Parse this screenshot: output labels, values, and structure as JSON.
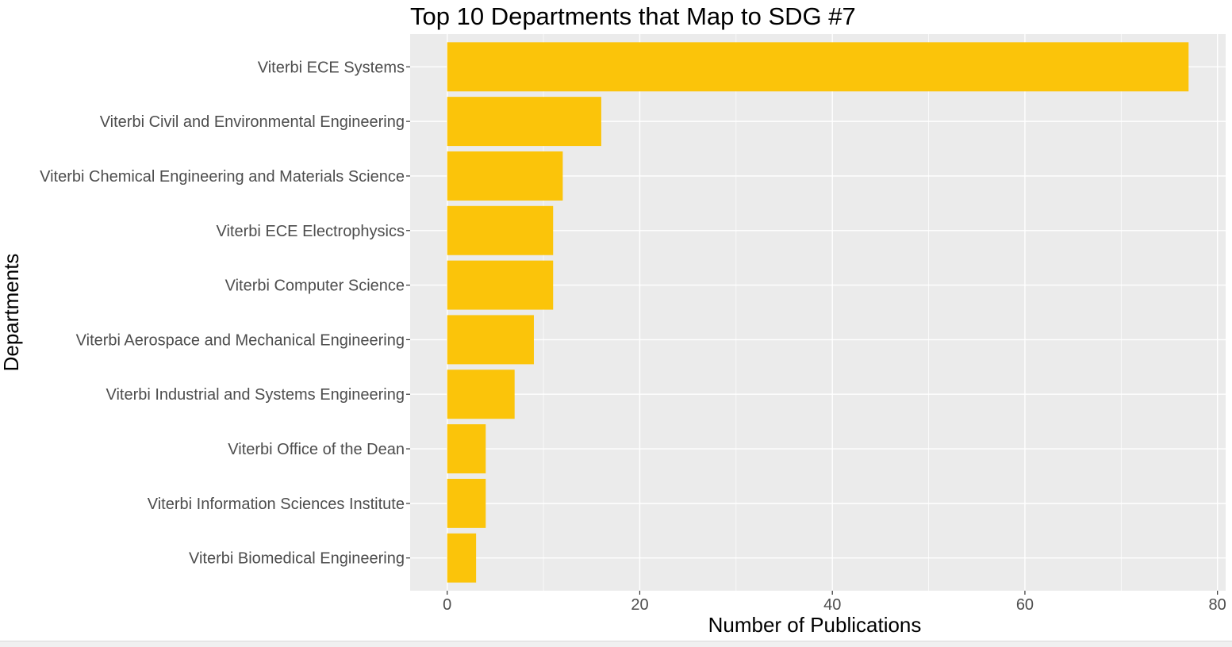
{
  "chart_data": {
    "type": "bar",
    "orientation": "horizontal",
    "title": "Top 10 Departments that Map to SDG #7",
    "xlabel": "Number of Publications",
    "ylabel": "Departments",
    "categories": [
      "Viterbi ECE Systems",
      "Viterbi Civil and Environmental Engineering",
      "Viterbi Chemical Engineering and Materials Science",
      "Viterbi ECE Electrophysics",
      "Viterbi Computer Science",
      "Viterbi Aerospace and Mechanical Engineering",
      "Viterbi Industrial and Systems Engineering",
      "Viterbi Office of the Dean",
      "Viterbi Information Sciences Institute",
      "Viterbi Biomedical Engineering"
    ],
    "values": [
      77,
      16,
      12,
      11,
      11,
      9,
      7,
      4,
      4,
      3
    ],
    "xlim": [
      -3.85,
      80.85
    ],
    "xticks": [
      0,
      20,
      40,
      60,
      80
    ],
    "xtick_labels": [
      "0",
      "20",
      "40",
      "60",
      "80"
    ],
    "bar_color": "#fbc40a",
    "panel_color": "#ebebeb",
    "grid": true,
    "legend": "none"
  }
}
